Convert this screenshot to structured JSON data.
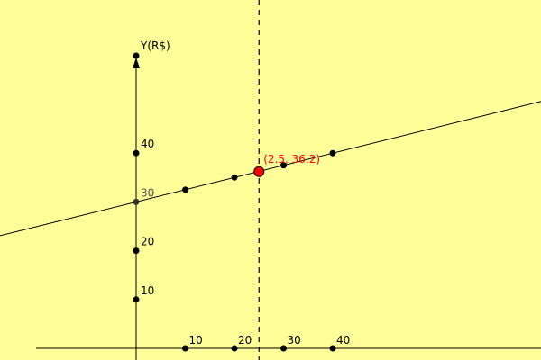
{
  "canvas": {
    "background": "#ffff99",
    "axis_color": "#000000",
    "point_color": "#000000",
    "highlight_color": "#ff0000"
  },
  "axes": {
    "y_label": "Y(R$)",
    "x_ticks": [
      {
        "value": 1,
        "label": "10"
      },
      {
        "value": 2,
        "label": "20"
      },
      {
        "value": 3,
        "label": "30"
      },
      {
        "value": 4,
        "label": "40"
      }
    ],
    "y_ticks": [
      {
        "value": 10,
        "label": "10"
      },
      {
        "value": 20,
        "label": "20"
      },
      {
        "value": 30,
        "label": "30"
      },
      {
        "value": 40,
        "label": "40"
      }
    ]
  },
  "line": {
    "intercept": 30,
    "slope": 2.5
  },
  "line_points": [
    {
      "x": 0,
      "y": 30
    },
    {
      "x": 1,
      "y": 32.5
    },
    {
      "x": 2,
      "y": 35
    },
    {
      "x": 3,
      "y": 37.5
    },
    {
      "x": 4,
      "y": 40
    }
  ],
  "highlight": {
    "x": 2.5,
    "y": 36.2,
    "label": "(2.5, 36.2)"
  },
  "vertical_marker": {
    "x": 2.5
  }
}
